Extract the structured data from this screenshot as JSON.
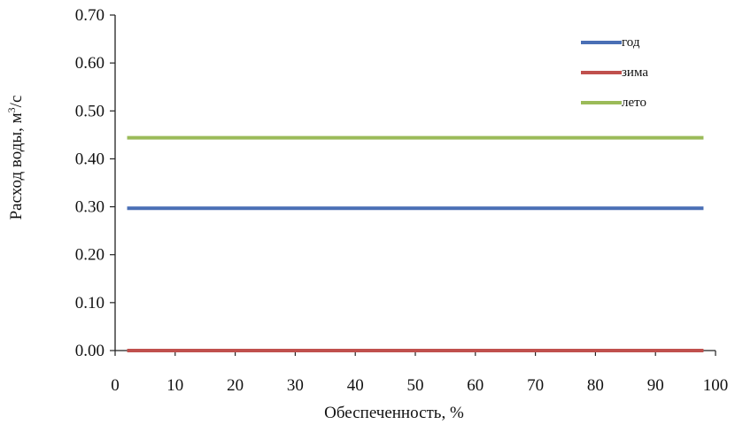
{
  "chart_data": {
    "type": "line",
    "title": "",
    "xlabel": "Обеспеченность, %",
    "ylabel": {
      "main": "Расход воды, м",
      "sup": "3",
      "tail": "/с"
    },
    "xlim": [
      0,
      100
    ],
    "ylim": [
      0,
      0.7
    ],
    "x_ticks": [
      "0",
      "10",
      "20",
      "30",
      "40",
      "50",
      "60",
      "70",
      "80",
      "90",
      "100"
    ],
    "y_ticks": [
      "0.00",
      "0.10",
      "0.20",
      "0.30",
      "0.40",
      "0.50",
      "0.60",
      "0.70"
    ],
    "grid": false,
    "legend_position": "top-right",
    "series": [
      {
        "name": "год",
        "color": "#4a6fb5",
        "x": [
          2,
          98
        ],
        "y": [
          0.297,
          0.297
        ]
      },
      {
        "name": "зима",
        "color": "#c0504d",
        "x": [
          2,
          98
        ],
        "y": [
          0.0,
          0.0
        ]
      },
      {
        "name": "лето",
        "color": "#9bbb59",
        "x": [
          2,
          98
        ],
        "y": [
          0.444,
          0.444
        ]
      }
    ]
  }
}
